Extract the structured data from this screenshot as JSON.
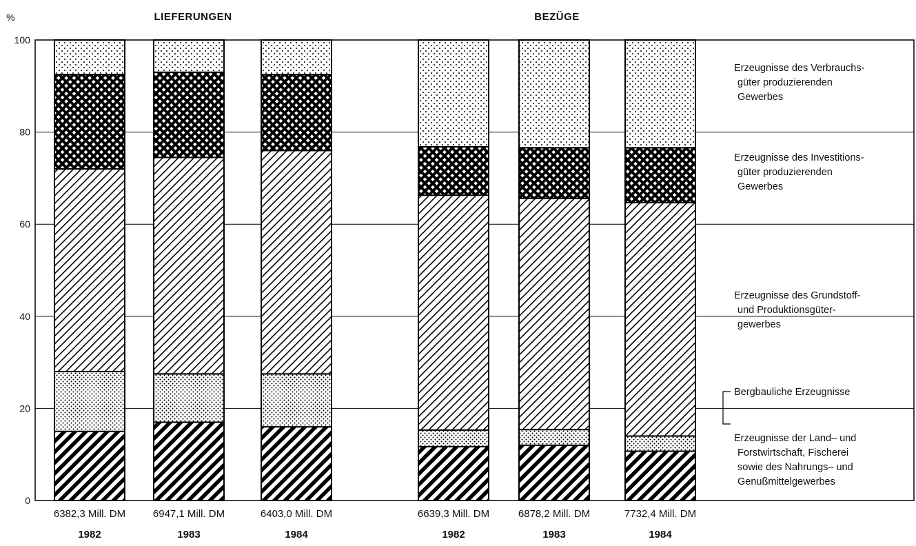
{
  "chart_data": {
    "type": "stacked-bar-100",
    "ylabel": "%",
    "ylim": [
      0,
      100
    ],
    "yticks": [
      0,
      20,
      40,
      60,
      80,
      100
    ],
    "grid": true,
    "legend_position": "right",
    "groups": [
      {
        "title": "LIEFERUNGEN",
        "bar_indices": [
          0,
          1,
          2
        ]
      },
      {
        "title": "BEZÜGE",
        "bar_indices": [
          3,
          4,
          5
        ]
      }
    ],
    "bars": [
      {
        "amount": "6382,3 Mill. DM",
        "year": "1982"
      },
      {
        "amount": "6947,1 Mill. DM",
        "year": "1983"
      },
      {
        "amount": "6403,0 Mill. DM",
        "year": "1984"
      },
      {
        "amount": "6639,3 Mill. DM",
        "year": "1982"
      },
      {
        "amount": "6878,2 Mill. DM",
        "year": "1983"
      },
      {
        "amount": "7732,4 Mill. DM",
        "year": "1984"
      }
    ],
    "series": [
      {
        "name": "Erzeugnisse der Land– und Forstwirtschaft, Fischerei sowie des Nahrungs– und Genußmittelgewerbes",
        "name_lines": [
          "Erzeugnisse der Land– und",
          "Forstwirtschaft, Fischerei",
          "sowie des Nahrungs– und",
          "Genußmittelgewerbes"
        ],
        "pattern": "dense-diagonal",
        "values": [
          15,
          17,
          16,
          11.7,
          12,
          10.7
        ]
      },
      {
        "name": "Bergbauliche Erzeugnisse",
        "name_lines": [
          "Bergbauliche Erzeugnisse"
        ],
        "pattern": "dots",
        "values": [
          13,
          10.5,
          11.5,
          3.6,
          3.4,
          3.3
        ]
      },
      {
        "name": "Erzeugnisse des Grundstoff- und Produktionsgütergewerbes",
        "name_lines": [
          "Erzeugnisse des Grundstoff-",
          "und Produktionsgüter-",
          "gewerbes"
        ],
        "pattern": "diagonal",
        "values": [
          44,
          47,
          48.5,
          51,
          50.2,
          50.7
        ]
      },
      {
        "name": "Erzeugnisse des Investitionsgüter produzierenden Gewerbes",
        "name_lines": [
          "Erzeugnisse des Investitions-",
          "güter produzierenden",
          "Gewerbes"
        ],
        "pattern": "cross-hatch",
        "values": [
          20.5,
          18.5,
          16.5,
          10.5,
          11,
          11.9
        ]
      },
      {
        "name": "Erzeugnisse des Verbrauchsgüter produzierenden Gewerbes",
        "name_lines": [
          "Erzeugnisse des Verbrauchs-",
          "güter produzierenden",
          "Gewerbes"
        ],
        "pattern": "sparse-dots",
        "values": [
          7.5,
          7,
          7.5,
          23.2,
          23.4,
          23.4
        ]
      }
    ]
  }
}
